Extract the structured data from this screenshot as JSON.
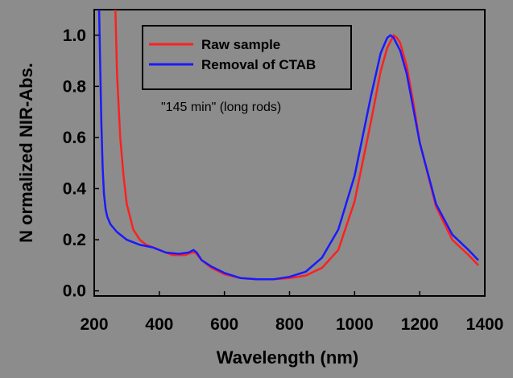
{
  "chart_data": {
    "type": "line",
    "xlabel": "Wavelength (nm)",
    "ylabel": "N ormalized NIR-Abs.",
    "xlim": [
      200,
      1400
    ],
    "ylim": [
      -0.02,
      1.1
    ],
    "x_ticks": [
      "200",
      "400",
      "600",
      "800",
      "1000",
      "1200",
      "1400"
    ],
    "y_ticks": [
      "0.0",
      "0.2",
      "0.4",
      "0.6",
      "0.8",
      "1.0"
    ],
    "annotation": "\"145 min\" (long rods)",
    "legend_position": "top-center",
    "background_color": "#8c8c8c",
    "series": [
      {
        "name": "Raw sample",
        "color": "#ff2020",
        "x": [
          265,
          270,
          280,
          290,
          300,
          320,
          340,
          360,
          380,
          400,
          440,
          480,
          500,
          510,
          530,
          560,
          600,
          650,
          700,
          750,
          800,
          850,
          900,
          950,
          1000,
          1050,
          1080,
          1100,
          1120,
          1130,
          1140,
          1160,
          1180,
          1200,
          1250,
          1300,
          1350,
          1380
        ],
        "y": [
          1.1,
          0.85,
          0.6,
          0.45,
          0.34,
          0.24,
          0.2,
          0.18,
          0.17,
          0.16,
          0.14,
          0.14,
          0.15,
          0.15,
          0.12,
          0.09,
          0.065,
          0.05,
          0.045,
          0.045,
          0.05,
          0.06,
          0.09,
          0.16,
          0.35,
          0.66,
          0.86,
          0.95,
          1.0,
          0.99,
          0.97,
          0.88,
          0.74,
          0.58,
          0.33,
          0.2,
          0.14,
          0.1
        ]
      },
      {
        "name": "Removal of CTAB",
        "color": "#1a1aff",
        "x": [
          215,
          218,
          222,
          226,
          230,
          235,
          240,
          250,
          270,
          300,
          340,
          380,
          420,
          460,
          490,
          505,
          515,
          530,
          560,
          600,
          650,
          700,
          750,
          800,
          850,
          900,
          950,
          1000,
          1050,
          1080,
          1100,
          1110,
          1120,
          1140,
          1160,
          1200,
          1250,
          1300,
          1350,
          1380
        ],
        "y": [
          1.1,
          0.9,
          0.65,
          0.48,
          0.38,
          0.32,
          0.29,
          0.26,
          0.23,
          0.2,
          0.18,
          0.17,
          0.15,
          0.145,
          0.15,
          0.16,
          0.15,
          0.12,
          0.095,
          0.07,
          0.05,
          0.045,
          0.045,
          0.055,
          0.075,
          0.13,
          0.24,
          0.45,
          0.76,
          0.93,
          0.99,
          1.0,
          0.99,
          0.94,
          0.85,
          0.58,
          0.34,
          0.22,
          0.16,
          0.12
        ]
      }
    ]
  }
}
